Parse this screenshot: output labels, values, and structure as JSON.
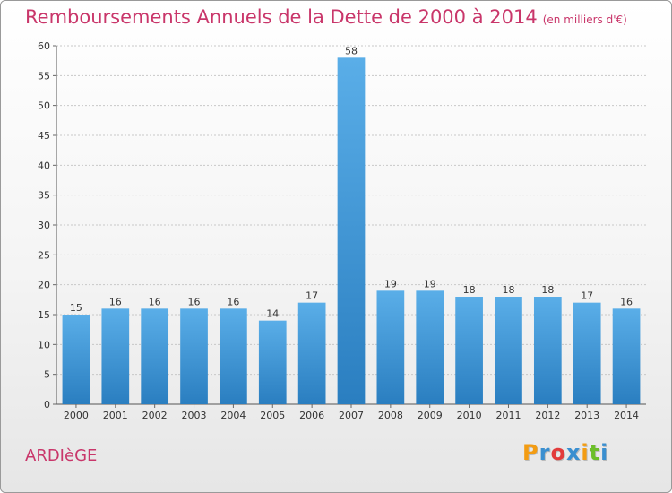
{
  "title": "Remboursements Annuels de la Dette de 2000 à 2014",
  "unit": "(en milliers d'€)",
  "commune": "ARDIèGE",
  "logo": {
    "text": "Proxiti",
    "colors": [
      "#f39c12",
      "#3a8fd0",
      "#e23b3b",
      "#3a8fd0",
      "#f39c12",
      "#6cbf2a",
      "#3a8fd0"
    ]
  },
  "colors": {
    "accent": "#c9366a",
    "bar": "#2f86c8",
    "bar_light": "#5aaee8"
  },
  "chart_data": {
    "type": "bar",
    "title": "Remboursements Annuels de la Dette de 2000 à 2014",
    "xlabel": "",
    "ylabel": "",
    "categories": [
      "2000",
      "2001",
      "2002",
      "2003",
      "2004",
      "2005",
      "2006",
      "2007",
      "2008",
      "2009",
      "2010",
      "2011",
      "2012",
      "2013",
      "2014"
    ],
    "values": [
      15,
      16,
      16,
      16,
      16,
      14,
      17,
      58,
      19,
      19,
      18,
      18,
      18,
      17,
      16
    ],
    "ylim": [
      0,
      60
    ],
    "yticks": [
      0,
      5,
      10,
      15,
      20,
      25,
      30,
      35,
      40,
      45,
      50,
      55,
      60
    ],
    "grid": true
  }
}
